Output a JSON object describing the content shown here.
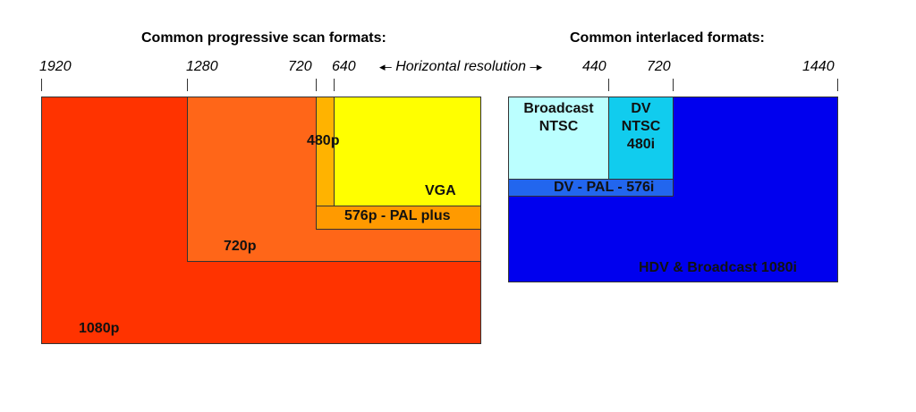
{
  "titles": {
    "progressive": "Common progressive scan formats:",
    "interlaced": "Common interlaced formats:"
  },
  "axis": {
    "caption": "Horizontal resolution",
    "left_arrow": "◂–",
    "right_arrow": "–▸",
    "ticks": [
      "1920",
      "1280",
      "720",
      "640",
      "440",
      "720",
      "1440"
    ]
  },
  "progressive": {
    "p1080": "1080p",
    "p720": "720p",
    "p576": "576p - PAL plus",
    "p480": "480p",
    "vga": "VGA"
  },
  "interlaced": {
    "i1080": "HDV & Broadcast 1080i",
    "i576": "DV - PAL - 576i",
    "ntsc_line1": "Broadcast",
    "ntsc_line2": "NTSC",
    "dvntsc_line1": "DV",
    "dvntsc_line2": "NTSC",
    "dvntsc_line3": "480i"
  },
  "colors": {
    "p1080": "#FF3300",
    "p720": "#FF6618",
    "p576": "#FF9A00",
    "p480": "#FFB300",
    "vga": "#FFFF00",
    "i1080": "#0000EE",
    "i576": "#2266EE",
    "ntsc": "#BBFFFF",
    "dvntsc": "#11CCEE"
  }
}
